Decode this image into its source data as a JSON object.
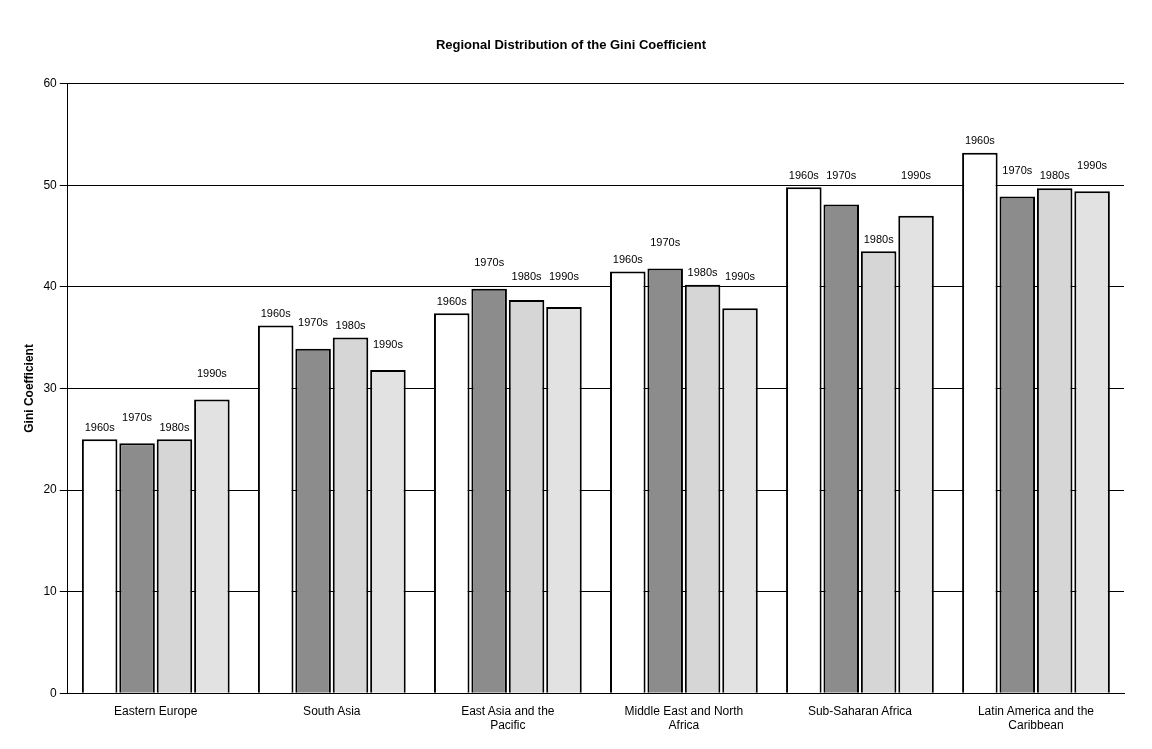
{
  "chart_data": {
    "type": "bar",
    "title": "Regional Distribution of the Gini Coefficient",
    "ylabel": "Gini Coefficient",
    "categories": [
      "Eastern Europe",
      "South Asia",
      "East Asia and the Pacific",
      "Middle East and North Africa",
      "Sub-Saharan Africa",
      "Latin America and the Caribbean"
    ],
    "series": [
      {
        "name": "1960s",
        "color": "#ffffff",
        "values": [
          25.0,
          36.2,
          37.4,
          41.5,
          49.8,
          53.2
        ]
      },
      {
        "name": "1970s",
        "color": "#8c8c8c",
        "values": [
          24.6,
          33.9,
          39.8,
          41.8,
          48.1,
          48.9
        ]
      },
      {
        "name": "1980s",
        "color": "#d6d6d6",
        "values": [
          25.0,
          35.0,
          38.7,
          40.2,
          43.5,
          49.7
        ]
      },
      {
        "name": "1990s",
        "color": "#e2e2e2",
        "values": [
          28.9,
          31.8,
          38.0,
          37.9,
          47.0,
          49.4
        ]
      }
    ],
    "ylim": [
      0,
      60
    ],
    "yticks": [
      0,
      10,
      20,
      30,
      40,
      50,
      60
    ],
    "grid": "y",
    "legend": false
  }
}
